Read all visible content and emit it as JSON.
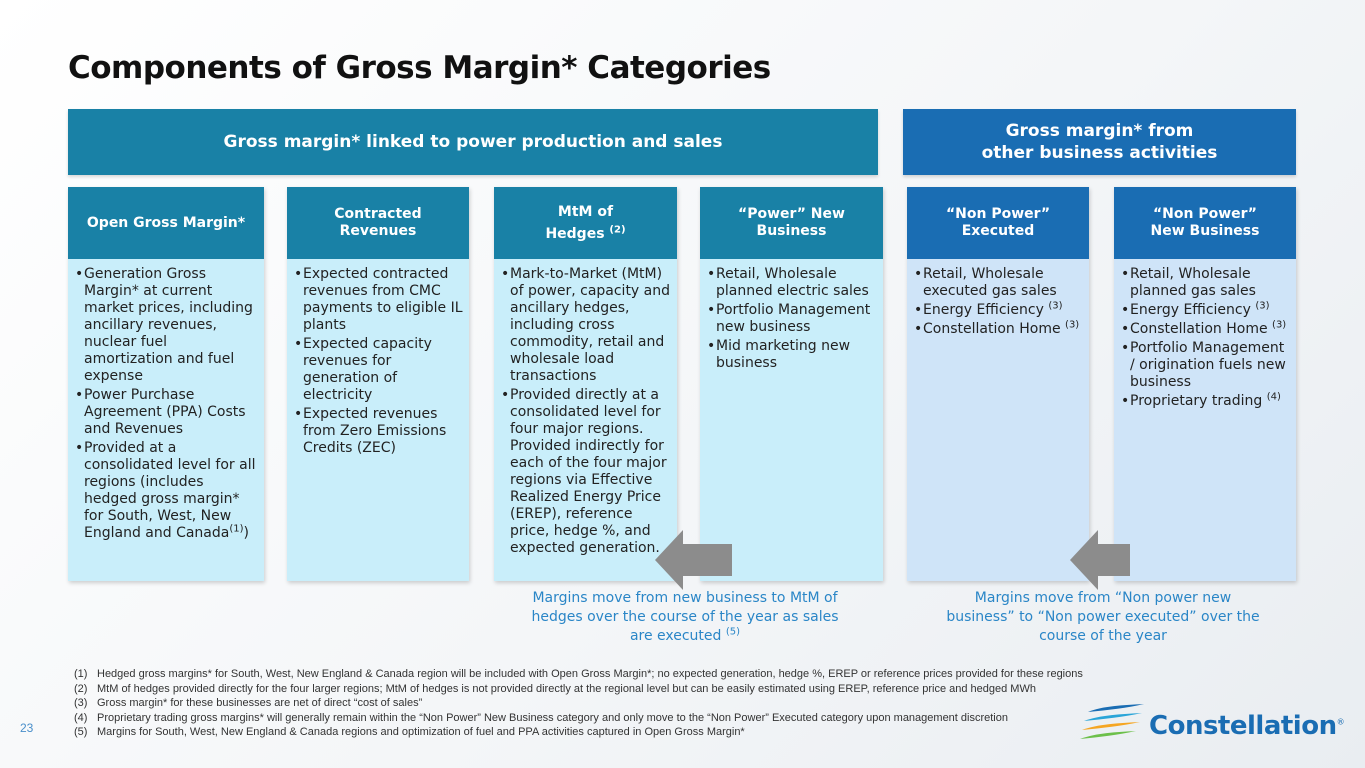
{
  "title": "Components of Gross Margin* Categories",
  "banners": {
    "left": "Gross margin* linked to power production and sales",
    "right_line1": "Gross margin* from",
    "right_line2": "other business activities"
  },
  "columns": [
    {
      "heading": "Open Gross Margin*",
      "bullets": [
        "Generation Gross Margin* at current market prices, including ancillary revenues, nuclear fuel amortization and fuel expense",
        "Power Purchase Agreement (PPA) Costs and Revenues",
        "Provided at a consolidated level for all regions (includes hedged gross margin* for South, West, New England and Canada"
      ],
      "bullet3_sup": "(1)",
      "bullet3_tail": ")"
    },
    {
      "heading_line1": "Contracted",
      "heading_line2": "Revenues",
      "bullets": [
        "Expected contracted revenues from CMC payments to eligible IL plants",
        "Expected capacity revenues for generation of electricity",
        "Expected revenues from Zero Emissions Credits (ZEC)"
      ]
    },
    {
      "heading_line1": "MtM of",
      "heading_line2": "Hedges",
      "heading_sup": "(2)",
      "bullets": [
        "Mark-to-Market (MtM) of power, capacity and ancillary hedges, including cross commodity, retail and wholesale load transactions",
        "Provided directly at a consolidated level for four major regions. Provided indirectly for each of the four major regions via Effective Realized Energy Price (EREP), reference price, hedge %, and expected generation."
      ]
    },
    {
      "heading_line1": "“Power” New",
      "heading_line2": "Business",
      "bullets": [
        "Retail, Wholesale planned electric sales",
        "Portfolio Management new business",
        "Mid marketing new business"
      ]
    },
    {
      "heading_line1": "“Non Power”",
      "heading_line2": "Executed",
      "bullets": [
        "Retail, Wholesale executed gas sales",
        "Energy Efficiency",
        "Constellation Home"
      ],
      "sup": "(3)"
    },
    {
      "heading_line1": "“Non Power”",
      "heading_line2": "New Business",
      "bullets": [
        "Retail, Wholesale planned gas sales",
        "Energy Efficiency",
        "Constellation Home",
        "Portfolio Management / origination fuels new business",
        "Proprietary trading"
      ],
      "sup3": "(3)",
      "sup4": "(4)"
    }
  ],
  "notes": {
    "left": "Margins move from new business to MtM of hedges over the course of the year as sales are executed",
    "left_sup": "(5)",
    "right": "Margins move from “Non power new business” to “Non power executed” over the course of the year"
  },
  "footnotes": [
    {
      "num": "(1)",
      "text": "Hedged gross margins* for South, West, New England & Canada region will be included with Open Gross Margin*; no expected generation, hedge %, EREP or reference prices provided for these regions"
    },
    {
      "num": "(2)",
      "text": "MtM of hedges provided directly for the four larger regions; MtM of hedges is not provided directly at the regional level but can be easily estimated using EREP, reference price and hedged MWh"
    },
    {
      "num": "(3)",
      "text": "Gross margin* for these businesses are net of direct “cost of sales”"
    },
    {
      "num": "(4)",
      "text": "Proprietary trading gross margins* will generally remain within the “Non Power” New Business category and only move to the “Non Power” Executed category upon management discretion"
    },
    {
      "num": "(5)",
      "text": "Margins for South, West, New England & Canada regions and optimization of fuel and PPA activities captured in Open Gross Margin*"
    }
  ],
  "page_number": "23",
  "logo_text": "Constellation",
  "logo_mark": "®",
  "colors": {
    "teal_header": "#1981a6",
    "blue_header": "#1a6db3",
    "teal_body": "#c9eefa",
    "blue_body": "#cfe4f8",
    "note_text": "#2a86c7",
    "arrow": "#8c8c8c"
  },
  "icons": [
    "left-arrow-icon",
    "left-arrow-icon",
    "constellation-logo-icon"
  ]
}
